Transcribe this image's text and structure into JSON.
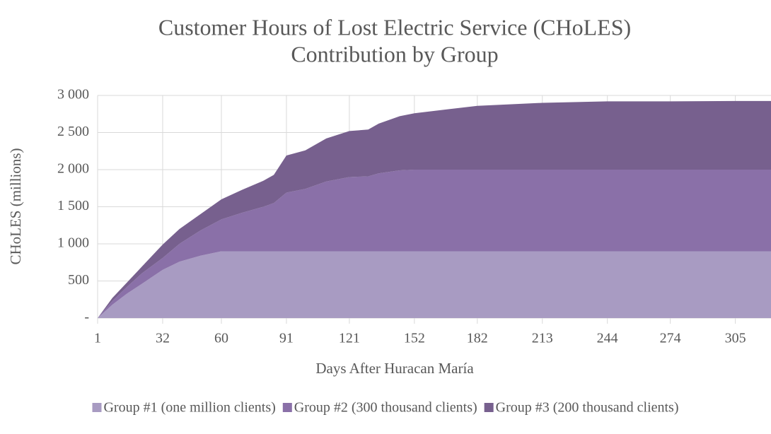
{
  "chart_data": {
    "type": "stacked_area",
    "title": [
      "Customer Hours of Lost Electric Service (CHoLES)",
      "Contribution by Group"
    ],
    "x_label": "Days After Huracan María",
    "y_label": "CHoLES (millions)",
    "x": [
      1,
      8,
      15,
      22,
      32,
      40,
      50,
      60,
      70,
      80,
      85,
      91,
      100,
      110,
      121,
      130,
      135,
      145,
      152,
      182,
      213,
      244,
      274,
      305,
      322
    ],
    "series": [
      {
        "name": "Group #1 (one million clients)",
        "color": "#a89bc2",
        "values": [
          0,
          180,
          330,
          460,
          650,
          760,
          840,
          900,
          900,
          900,
          900,
          900,
          900,
          900,
          900,
          900,
          900,
          900,
          900,
          900,
          900,
          900,
          900,
          900,
          900
        ]
      },
      {
        "name": "Group #2 (300 thousand clients)",
        "color": "#8a70a8",
        "values": [
          0,
          50,
          90,
          140,
          160,
          240,
          340,
          430,
          520,
          600,
          650,
          790,
          840,
          940,
          1000,
          1010,
          1050,
          1090,
          1100,
          1100,
          1100,
          1100,
          1100,
          1100,
          1100
        ]
      },
      {
        "name": "Group #3 (200 thousand clients)",
        "color": "#77608e",
        "values": [
          0,
          40,
          60,
          90,
          180,
          200,
          220,
          270,
          310,
          350,
          380,
          500,
          520,
          580,
          620,
          630,
          670,
          730,
          760,
          860,
          900,
          920,
          920,
          925,
          925
        ]
      }
    ],
    "xlim": [
      1,
      322
    ],
    "xticks": [
      1,
      32,
      60,
      91,
      121,
      152,
      182,
      213,
      244,
      274,
      305
    ],
    "ylim": [
      0,
      3000
    ],
    "yticks": [
      {
        "value": 0,
        "label": "-"
      },
      {
        "value": 500,
        "label": "500"
      },
      {
        "value": 1000,
        "label": "1 000"
      },
      {
        "value": 1500,
        "label": "1 500"
      },
      {
        "value": 2000,
        "label": "2 000"
      },
      {
        "value": 2500,
        "label": "2 500"
      },
      {
        "value": 3000,
        "label": "3 000"
      }
    ],
    "grid": true,
    "legend": "bottom"
  }
}
